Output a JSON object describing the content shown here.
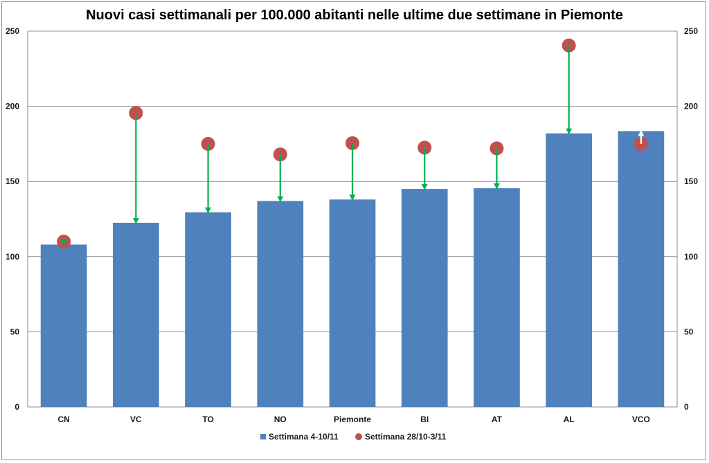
{
  "chart_data": {
    "type": "bar",
    "title": "Nuovi casi settimanali per 100.000 abitanti nelle ultime due settimane in Piemonte",
    "xlabel": "",
    "ylabel": "",
    "ylim": [
      0,
      250
    ],
    "yticks": [
      0,
      50,
      100,
      150,
      200,
      250
    ],
    "grid": true,
    "secondary_axis": true,
    "legend_position": "bottom",
    "categories": [
      "CN",
      "VC",
      "TO",
      "NO",
      "Piemonte",
      "BI",
      "AT",
      "AL",
      "VCO"
    ],
    "series": [
      {
        "name": "Settimana 4-10/11",
        "kind": "bar",
        "color": "#4f81bd",
        "values": [
          108,
          122.5,
          129.5,
          137,
          138,
          145,
          145.5,
          182,
          183.5
        ]
      },
      {
        "name": "Settimana 28/10-3/11",
        "kind": "marker",
        "color": "#c0504d",
        "values": [
          110,
          195.5,
          175,
          168,
          175.5,
          172.5,
          172,
          240.5,
          175
        ]
      }
    ],
    "arrow_colors": {
      "decrease": "#00b050",
      "increase": "#ffffff"
    }
  }
}
